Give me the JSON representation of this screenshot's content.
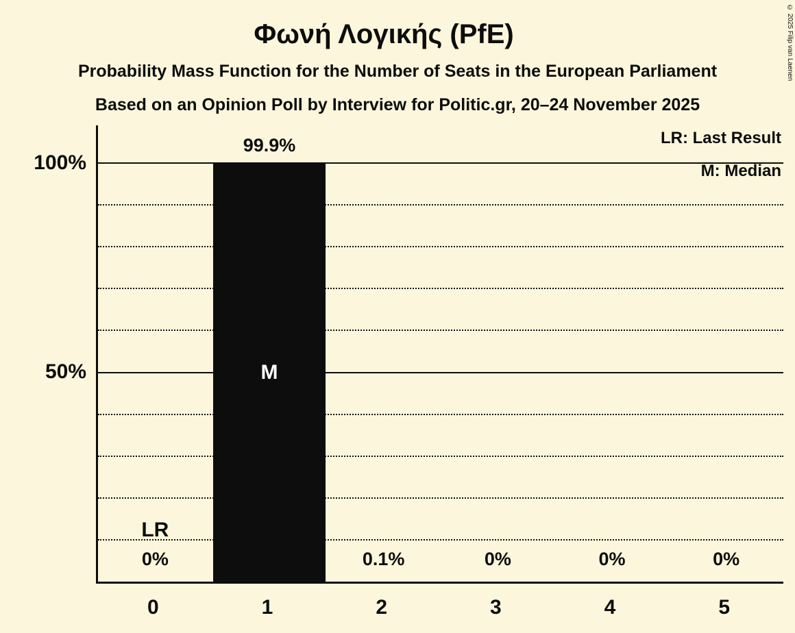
{
  "title": "Φωνή Λογικής (PfE)",
  "subtitle1": "Probability Mass Function for the Number of Seats in the European Parliament",
  "subtitle2": "Based on an Opinion Poll by Interview for Politic.gr, 20–24 November 2025",
  "legend": {
    "lr": "LR: Last Result",
    "m": "M: Median"
  },
  "copyright": "© 2025 Filip van Laenen",
  "colors": {
    "background": "#fcf6dc",
    "bar": "#0d0d0d",
    "text": "#0d0d0d",
    "median_text": "#ffffff"
  },
  "chart_data": {
    "type": "bar",
    "title": "Φωνή Λογικής (PfE)",
    "xlabel": "",
    "ylabel": "",
    "categories": [
      "0",
      "1",
      "2",
      "3",
      "4",
      "5"
    ],
    "values": [
      0,
      99.9,
      0.1,
      0,
      0,
      0
    ],
    "value_labels": [
      "0%",
      "99.9%",
      "0.1%",
      "0%",
      "0%",
      "0%"
    ],
    "y_ticks": [
      {
        "label": "100%",
        "value": 100
      },
      {
        "label": "50%",
        "value": 50
      }
    ],
    "ylim": [
      0,
      109
    ],
    "solid_gridlines": [
      50,
      100
    ],
    "dotted_gridlines": [
      10,
      20,
      30,
      40,
      60,
      70,
      80,
      90
    ],
    "grid": "on",
    "legend_position": "top-right",
    "last_result": {
      "category": "0",
      "label": "LR"
    },
    "median": {
      "category": "1",
      "label": "M"
    }
  }
}
